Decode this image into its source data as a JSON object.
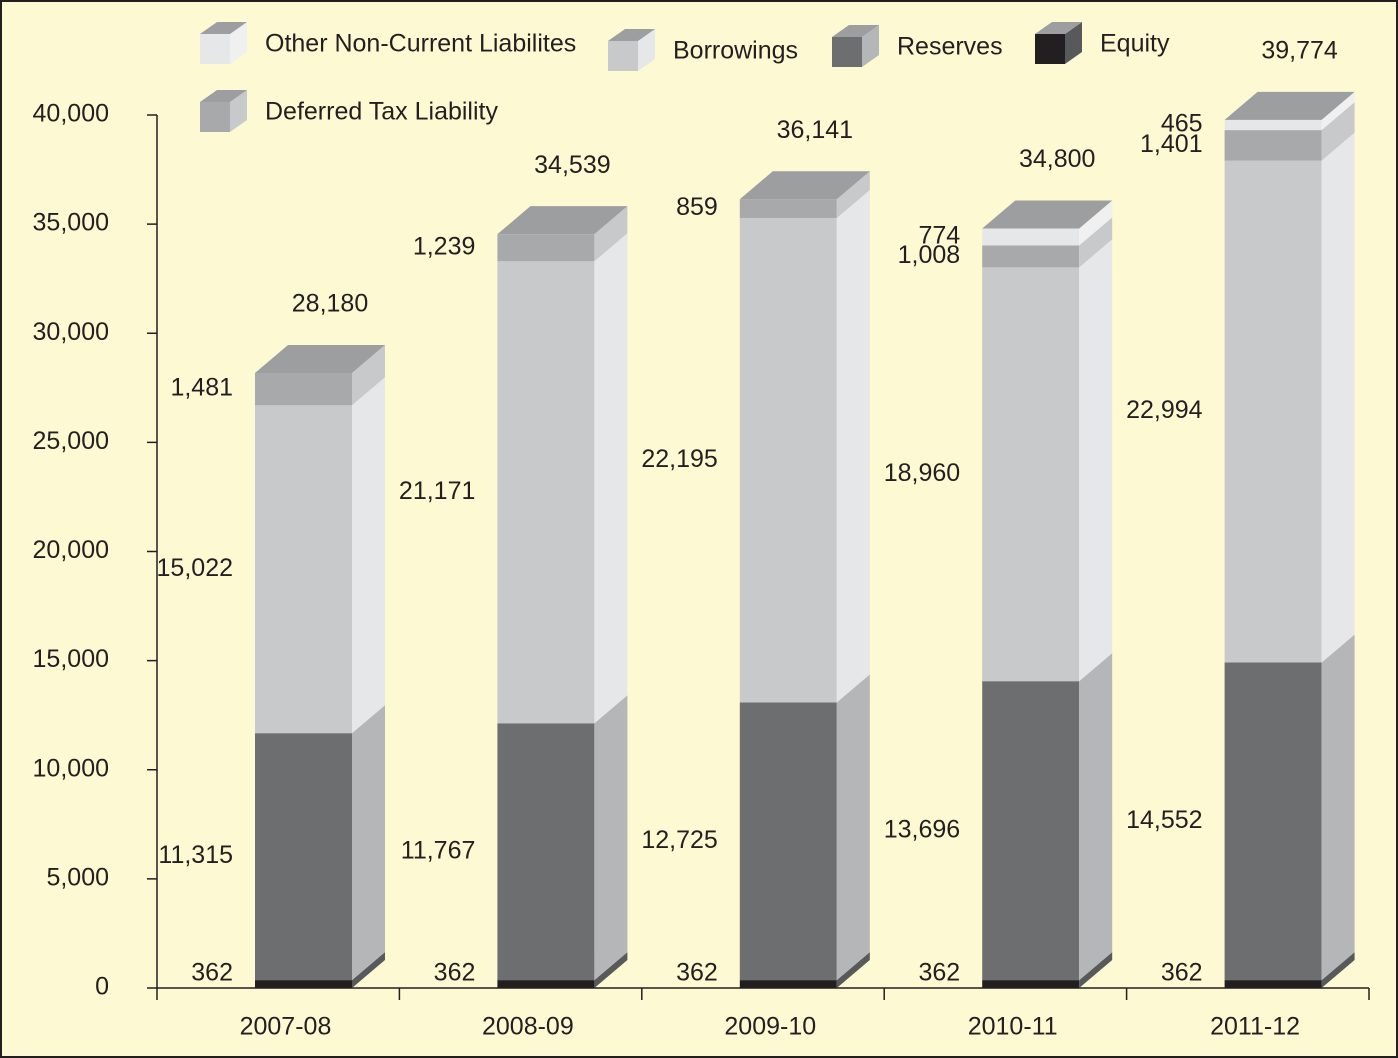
{
  "chart_data": {
    "type": "stacked_bar_3d",
    "categories": [
      "2007-08",
      "2008-09",
      "2009-10",
      "2010-11",
      "2011-12"
    ],
    "series": [
      {
        "name": "Other Non-Current Liabilites",
        "color": "#e6e7e8",
        "side_color": "#f0f0f1",
        "values": [
          null,
          null,
          null,
          774,
          465
        ],
        "value_labels": [
          null,
          null,
          null,
          "774",
          "465"
        ]
      },
      {
        "name": "Borrowings",
        "color": "#c8c9cb",
        "side_color": "#e6e7e8",
        "values": [
          15022,
          21171,
          22195,
          18960,
          22994
        ],
        "value_labels": [
          "15,022",
          "21,171",
          "22,195",
          "18,960",
          "22,994"
        ]
      },
      {
        "name": "Reserves",
        "color": "#6d6e70",
        "side_color": "#b5b6b8",
        "values": [
          11315,
          11767,
          12725,
          13696,
          14552
        ],
        "value_labels": [
          "11,315",
          "11,767",
          "12,725",
          "13,696",
          "14,552"
        ]
      },
      {
        "name": "Equity",
        "color": "#231f20",
        "side_color": "#58595b",
        "values": [
          362,
          362,
          362,
          362,
          362
        ],
        "value_labels": [
          "362",
          "362",
          "362",
          "362",
          "362"
        ]
      },
      {
        "name": "Deferred Tax Liability",
        "color": "#a7a9ab",
        "side_color": "#c8c9cb",
        "values": [
          1481,
          1239,
          859,
          1008,
          1401
        ],
        "value_labels": [
          "1,481",
          "1,239",
          "859",
          "1,008",
          "1,401"
        ]
      }
    ],
    "totals": {
      "values": [
        28180,
        34539,
        36141,
        34800,
        39774
      ],
      "value_labels": [
        "28,180",
        "34,539",
        "36,141",
        "34,800",
        "39,774"
      ]
    },
    "ylim": [
      0,
      40000
    ],
    "yticks": [
      0,
      {
        "value": 5000,
        "label": "5,000"
      },
      {
        "value": 10000,
        "label": "10,000"
      },
      {
        "value": 15000,
        "label": "15,000"
      },
      {
        "value": 20000,
        "label": "20,000"
      },
      {
        "value": 25000,
        "label": "25,000"
      },
      {
        "value": 30000,
        "label": "30,000"
      },
      {
        "value": 35000,
        "label": "35,000"
      },
      {
        "value": 40000,
        "label": "40,000"
      }
    ]
  }
}
